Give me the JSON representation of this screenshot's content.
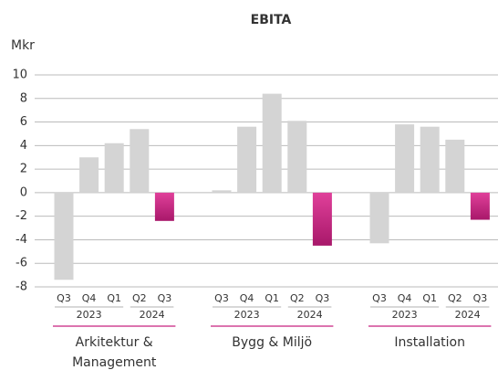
{
  "chart_data": {
    "type": "bar",
    "title": "EBITA",
    "y_label": "Mkr",
    "quarters": [
      "Q3",
      "Q4",
      "Q1",
      "Q2",
      "Q3"
    ],
    "years": [
      "2023",
      "2024"
    ],
    "groups": [
      {
        "name": [
          "Arkitektur &",
          "Management"
        ],
        "values": [
          -7.4,
          3.0,
          4.2,
          5.4,
          -2.4
        ]
      },
      {
        "name": [
          "Bygg & Miljö"
        ],
        "values": [
          0.2,
          5.6,
          8.4,
          6.1,
          -4.5
        ]
      },
      {
        "name": [
          "Installation"
        ],
        "values": [
          -4.3,
          5.8,
          5.6,
          4.5,
          -2.3
        ]
      }
    ],
    "color": "#d4d4d4",
    "highlight_color": "#c8207f",
    "ylim": [
      -8,
      10
    ],
    "yticks": [
      -8,
      -6,
      -4,
      -2,
      0,
      2,
      4,
      6,
      8,
      10
    ],
    "grid": true
  }
}
